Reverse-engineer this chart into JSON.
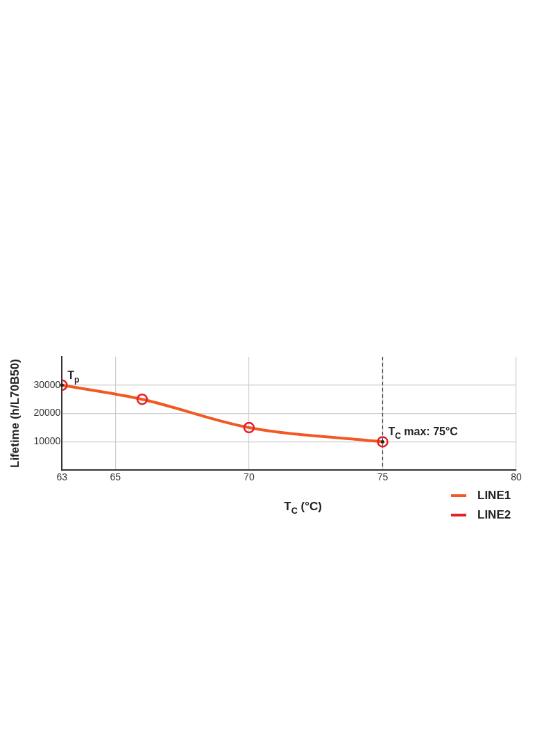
{
  "chart_data": {
    "type": "line",
    "xlabel": "T$_{C}$ (°C)",
    "ylabel": "Lifetime (h/L70B50)",
    "x": [
      63,
      66,
      70,
      75
    ],
    "series": [
      {
        "name": "LINE1",
        "type": "line",
        "color": "#f05a22",
        "marker": "none",
        "values": [
          30000,
          25000,
          15000,
          10000
        ]
      },
      {
        "name": "LINE2",
        "type": "scatter",
        "color": "#e3202a",
        "marker": "circle",
        "values": [
          30000,
          25000,
          15000,
          10000
        ]
      }
    ],
    "xlim": [
      63,
      80
    ],
    "xticks": [
      63,
      65,
      70,
      75,
      80
    ],
    "ylim": [
      0,
      40000
    ],
    "yticks": [
      10000,
      20000,
      30000
    ],
    "grid": true,
    "legend": "bottom right",
    "line_style": "solid",
    "ref_lines": [
      {
        "axis": "x",
        "value": 75,
        "color": "#333333",
        "line_style": "dashed"
      }
    ],
    "annotations": [
      {
        "text": "T$_{p}$",
        "x": 63,
        "y": 30000
      },
      {
        "text": "T$_{C}$ max: 75°C",
        "x": 75,
        "y": 10000
      }
    ]
  }
}
